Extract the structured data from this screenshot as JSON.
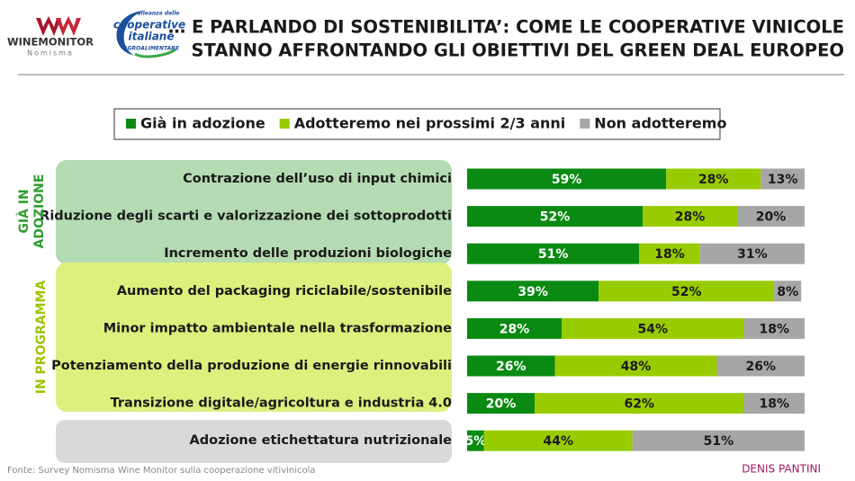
{
  "header": {
    "logo_1": "WINEMONITOR",
    "logo_1_sub": "Nomisma",
    "logo_2_lines": [
      "alleanza delle",
      "cooperative",
      "italiane",
      "AGROALIMENTARE"
    ]
  },
  "chart_data": {
    "type": "stacked-bar-horizontal",
    "title_lines": [
      "… E PARLANDO DI SOSTENIBILITA’: COME LE COOPERATIVE VINICOLE",
      "STANNO AFFRONTANDO GLI OBIETTIVI DEL GREEN DEAL EUROPEO"
    ],
    "categories": [
      "Contrazione dell’uso di input chimici",
      "Riduzione degli scarti e valorizzazione dei sottoprodotti",
      "Incremento delle produzioni biologiche",
      "Aumento del packaging riciclabile/sostenibile",
      "Minor impatto ambientale nella trasformazione",
      "Potenziamento della produzione di energie rinnovabili",
      "Transizione digitale/agricoltura e industria 4.0",
      "Adozione etichettatura nutrizionale"
    ],
    "xlim": [
      0,
      100
    ],
    "series": [
      {
        "name": "Già in adozione",
        "color": "#0a8a12",
        "values": [
          59,
          52,
          51,
          39,
          28,
          26,
          20,
          5
        ],
        "value_labels": [
          "59%",
          "52%",
          "51%",
          "39%",
          "28%",
          "26%",
          "20%",
          "5%"
        ]
      },
      {
        "name": "Adotteremo nei prossimi 2/3 anni",
        "color": "#99cc00",
        "values": [
          28,
          28,
          18,
          52,
          54,
          48,
          62,
          44
        ],
        "value_labels": [
          "28%",
          "28%",
          "18%",
          "52%",
          "54%",
          "48%",
          "62%",
          "44%"
        ]
      },
      {
        "name": "Non adotteremo",
        "color": "#a6a6a6",
        "values": [
          13,
          20,
          31,
          8,
          18,
          26,
          18,
          51
        ],
        "value_labels": [
          "13%",
          "20%",
          "31%",
          "8%",
          "18%",
          "26%",
          "18%",
          "51%"
        ]
      }
    ],
    "groups": [
      {
        "label_lines": [
          "GIÀ IN",
          "ADOZIONE"
        ]
      },
      {
        "label_lines": [
          "IN PROGRAMMA"
        ]
      }
    ],
    "source": "Fonte: Survey Nomisma Wine Monitor sulla cooperazione vitivinicola",
    "author": "DENIS PANTINI"
  }
}
